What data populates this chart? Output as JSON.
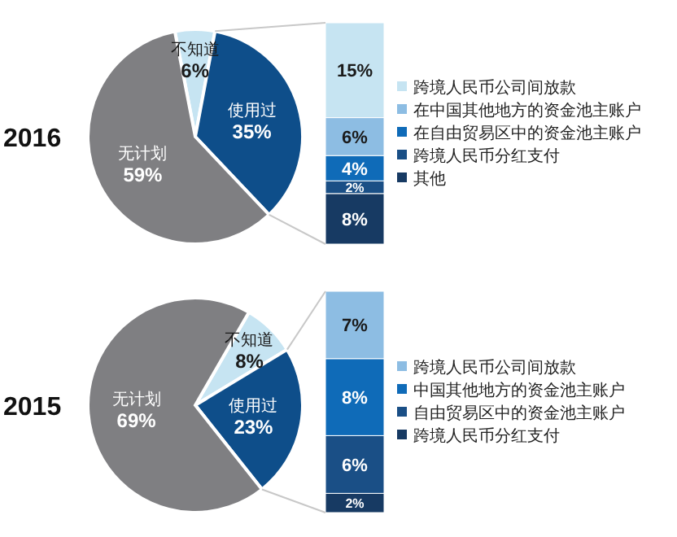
{
  "chart_data": [
    {
      "type": "pie",
      "title": "2016",
      "categories": [
        "不知道",
        "使用过",
        "无计划"
      ],
      "values": [
        6,
        35,
        59
      ],
      "colors": [
        "#c6e4f2",
        "#0e4e8a",
        "#7f7f82"
      ],
      "value_labels": [
        "6%",
        "35%",
        "59%"
      ]
    },
    {
      "type": "bar",
      "stacked": true,
      "categories": [
        null
      ],
      "legend": "right",
      "series": [
        {
          "name": "其他",
          "color": "#173a63",
          "values": [
            8
          ],
          "value_labels": [
            "8%"
          ]
        },
        {
          "name": "跨境人民币分红支付",
          "color": "#1a4f86",
          "values": [
            2
          ],
          "value_labels": [
            "2%"
          ]
        },
        {
          "name": "在自由贸易区中的资金池主账户",
          "color": "#0f6bb8",
          "values": [
            4
          ],
          "value_labels": [
            "4%"
          ]
        },
        {
          "name": "在中国其他地方的资金池主账户",
          "color": "#8dbde3",
          "values": [
            6
          ],
          "value_labels": [
            "6%"
          ]
        },
        {
          "name": "跨境人民币公司间放款",
          "color": "#c6e4f2",
          "values": [
            15
          ],
          "value_labels": [
            "15%"
          ]
        }
      ]
    },
    {
      "type": "pie",
      "title": "2015",
      "categories": [
        "不知道",
        "使用过",
        "无计划"
      ],
      "values": [
        8,
        23,
        69
      ],
      "colors": [
        "#c6e4f2",
        "#0e4e8a",
        "#7f7f82"
      ],
      "value_labels": [
        "8%",
        "23%",
        "69%"
      ]
    },
    {
      "type": "bar",
      "stacked": true,
      "categories": [
        null
      ],
      "legend": "right",
      "series": [
        {
          "name": "跨境人民币分红支付",
          "color": "#173a63",
          "values": [
            2
          ],
          "value_labels": [
            "2%"
          ]
        },
        {
          "name": "自由贸易区中的资金池主账户",
          "color": "#1a4f86",
          "values": [
            6
          ],
          "value_labels": [
            "6%"
          ]
        },
        {
          "name": "中国其他地方的资金池主账户",
          "color": "#0f6bb8",
          "values": [
            8
          ],
          "value_labels": [
            "8%"
          ]
        },
        {
          "name": "跨境人民币公司间放款",
          "color": "#8dbde3",
          "values": [
            7
          ],
          "value_labels": [
            "7%"
          ]
        }
      ]
    }
  ]
}
